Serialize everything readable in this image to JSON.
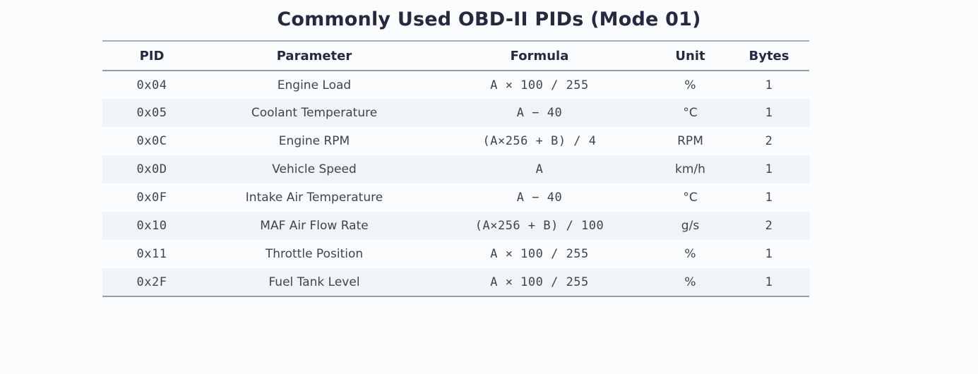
{
  "page": {
    "title": "Commonly Used OBD-II PIDs (Mode 01)"
  },
  "colors": {
    "background": "#fbfcfe",
    "title_text": "#252a41",
    "header_text": "#252a41",
    "body_text": "#3e4450",
    "stripe_row": "#f0f4f8",
    "rule_lines": "#989da5"
  },
  "chart_data": {
    "type": "table",
    "title": "Commonly Used OBD-II PIDs (Mode 01)",
    "columns": [
      "PID",
      "Parameter",
      "Formula",
      "Unit",
      "Bytes"
    ],
    "rows": [
      {
        "pid": "0x04",
        "parameter": "Engine Load",
        "formula": "A × 100 / 255",
        "unit": "%",
        "bytes": "1"
      },
      {
        "pid": "0x05",
        "parameter": "Coolant Temperature",
        "formula": "A − 40",
        "unit": "°C",
        "bytes": "1"
      },
      {
        "pid": "0x0C",
        "parameter": "Engine RPM",
        "formula": "(A×256 + B) / 4",
        "unit": "RPM",
        "bytes": "2"
      },
      {
        "pid": "0x0D",
        "parameter": "Vehicle Speed",
        "formula": "A",
        "unit": "km/h",
        "bytes": "1"
      },
      {
        "pid": "0x0F",
        "parameter": "Intake Air Temperature",
        "formula": "A − 40",
        "unit": "°C",
        "bytes": "1"
      },
      {
        "pid": "0x10",
        "parameter": "MAF Air Flow Rate",
        "formula": "(A×256 + B) / 100",
        "unit": "g/s",
        "bytes": "2"
      },
      {
        "pid": "0x11",
        "parameter": "Throttle Position",
        "formula": "A × 100 / 255",
        "unit": "%",
        "bytes": "1"
      },
      {
        "pid": "0x2F",
        "parameter": "Fuel Tank Level",
        "formula": "A × 100 / 255",
        "unit": "%",
        "bytes": "1"
      }
    ],
    "layout": {
      "grid": "horizontal rules only (above header, below header, below last row)",
      "row_striping": "alternating, even rows shaded",
      "alignment": "all columns centered"
    }
  }
}
